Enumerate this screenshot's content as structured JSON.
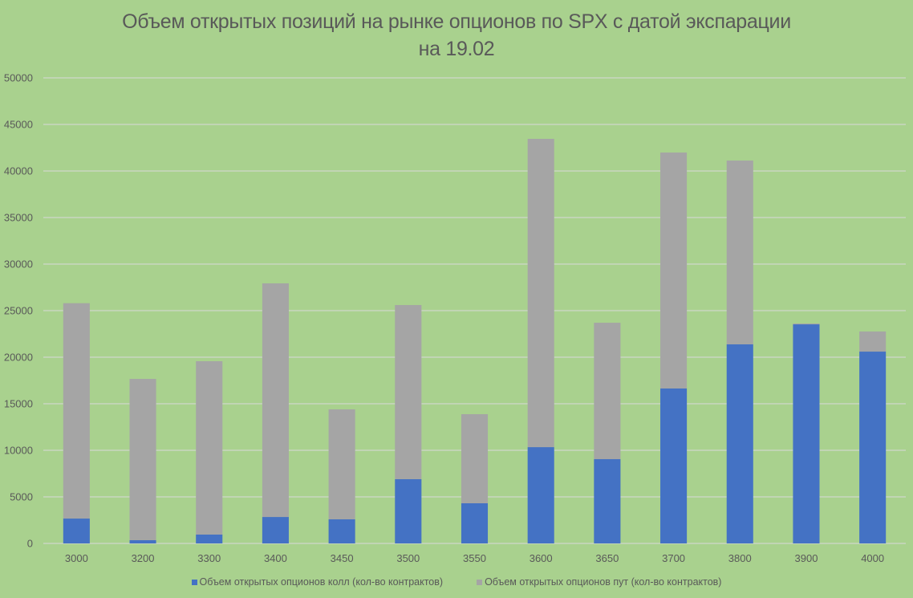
{
  "chart_data": {
    "type": "bar",
    "stacked": true,
    "title": "Объем открытых позиций на рынке опционов по SPX с датой экспарации на 19.02",
    "title_lines": [
      "Объем открытых позиций на рынке опционов по SPX с датой экспарации",
      "на 19.02"
    ],
    "xlabel": "",
    "ylabel": "",
    "ylim": [
      0,
      50000
    ],
    "yticks": [
      0,
      5000,
      10000,
      15000,
      20000,
      25000,
      30000,
      35000,
      40000,
      45000,
      50000
    ],
    "grid": true,
    "legend_position": "bottom",
    "categories": [
      "3000",
      "3200",
      "3300",
      "3400",
      "3450",
      "3500",
      "3550",
      "3600",
      "3650",
      "3700",
      "3800",
      "3900",
      "4000"
    ],
    "series": [
      {
        "name": "Объем открытых опционов колл (кол-во контрактов)",
        "color": "#4472c4",
        "values": [
          2670,
          350,
          950,
          2840,
          2590,
          6900,
          4310,
          10340,
          9050,
          16640,
          21380,
          23530,
          20600
        ]
      },
      {
        "name": "Объем открытых опционов пут (кол-во контрактов)",
        "color": "#a5a5a5",
        "values": [
          23130,
          17320,
          18620,
          25090,
          11810,
          18700,
          9570,
          33110,
          14650,
          25340,
          19740,
          90,
          2160
        ]
      }
    ]
  },
  "colors": {
    "background": "#a9d18e",
    "gridline": "#d9d9d9",
    "text": "#595959"
  }
}
